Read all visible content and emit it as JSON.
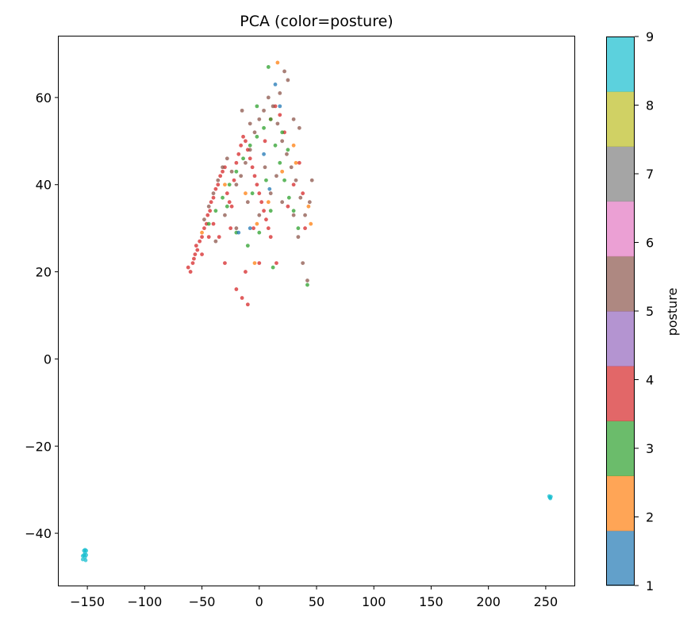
{
  "chart_data": {
    "type": "scatter",
    "title": "PCA (color=posture)",
    "xlabel": "",
    "ylabel": "",
    "xlim": [
      -175,
      275
    ],
    "ylim": [
      -52,
      74
    ],
    "xticks": [
      -150,
      -100,
      -50,
      0,
      50,
      100,
      150,
      200,
      250
    ],
    "yticks": [
      -40,
      -20,
      0,
      20,
      40,
      60
    ],
    "grid": false,
    "colorbar": {
      "label": "posture",
      "min": 1,
      "max": 9,
      "ticks": [
        1,
        2,
        3,
        4,
        5,
        6,
        7,
        8,
        9
      ],
      "colors": [
        "#1f77b4",
        "#ff7f0e",
        "#2ca02c",
        "#d62728",
        "#9467bd",
        "#8c564b",
        "#e377c2",
        "#7f7f7f",
        "#bcbd22",
        "#17becf"
      ]
    },
    "series": [
      {
        "posture": 4,
        "points": [
          [
            -62,
            21
          ],
          [
            -60,
            20
          ],
          [
            -58,
            22
          ],
          [
            -56,
            24
          ],
          [
            -55,
            26
          ],
          [
            -54,
            25
          ],
          [
            -52,
            27
          ],
          [
            -50,
            28
          ],
          [
            -48,
            30
          ],
          [
            -46,
            31
          ],
          [
            -45,
            33
          ],
          [
            -43,
            34
          ],
          [
            -42,
            36
          ],
          [
            -40,
            37
          ],
          [
            -38,
            39
          ],
          [
            -36,
            40
          ],
          [
            -34,
            42
          ],
          [
            -32,
            43
          ],
          [
            -30,
            44
          ],
          [
            -28,
            38
          ],
          [
            -26,
            36
          ],
          [
            -24,
            35
          ],
          [
            -22,
            41
          ],
          [
            -20,
            45
          ],
          [
            -18,
            47
          ],
          [
            -16,
            49
          ],
          [
            -14,
            51
          ],
          [
            -12,
            50
          ],
          [
            -10,
            48
          ],
          [
            -8,
            46
          ],
          [
            -6,
            44
          ],
          [
            -4,
            42
          ],
          [
            -2,
            40
          ],
          [
            0,
            38
          ],
          [
            2,
            36
          ],
          [
            4,
            34
          ],
          [
            6,
            32
          ],
          [
            8,
            30
          ],
          [
            10,
            28
          ],
          [
            -20,
            16
          ],
          [
            -15,
            14
          ],
          [
            -10,
            12.5
          ],
          [
            -30,
            22
          ],
          [
            -35,
            28
          ],
          [
            -40,
            31
          ],
          [
            -44,
            28
          ],
          [
            -50,
            24
          ],
          [
            -57,
            23
          ],
          [
            -25,
            30
          ],
          [
            -5,
            30
          ],
          [
            5,
            50
          ],
          [
            10,
            55
          ],
          [
            14,
            58
          ],
          [
            18,
            56
          ],
          [
            22,
            52
          ],
          [
            30,
            40
          ],
          [
            35,
            45
          ],
          [
            38,
            38
          ],
          [
            40,
            30
          ],
          [
            25,
            35
          ],
          [
            -12,
            20
          ],
          [
            0,
            22
          ],
          [
            15,
            22
          ]
        ]
      },
      {
        "posture": 5,
        "points": [
          [
            -48,
            32
          ],
          [
            -44,
            35
          ],
          [
            -40,
            38
          ],
          [
            -36,
            41
          ],
          [
            -32,
            44
          ],
          [
            -28,
            46
          ],
          [
            -24,
            43
          ],
          [
            -20,
            40
          ],
          [
            -16,
            42
          ],
          [
            -12,
            45
          ],
          [
            -8,
            48
          ],
          [
            -4,
            52
          ],
          [
            0,
            55
          ],
          [
            4,
            57
          ],
          [
            8,
            60
          ],
          [
            12,
            58
          ],
          [
            16,
            54
          ],
          [
            20,
            50
          ],
          [
            24,
            47
          ],
          [
            28,
            44
          ],
          [
            32,
            41
          ],
          [
            36,
            37
          ],
          [
            40,
            33
          ],
          [
            44,
            36
          ],
          [
            46,
            41
          ],
          [
            42,
            18
          ],
          [
            38,
            22
          ],
          [
            34,
            28
          ],
          [
            30,
            33
          ],
          [
            20,
            36
          ],
          [
            10,
            38
          ],
          [
            0,
            33
          ],
          [
            -10,
            36
          ],
          [
            -20,
            30
          ],
          [
            -30,
            33
          ],
          [
            -38,
            27
          ],
          [
            22,
            66
          ],
          [
            25,
            64
          ],
          [
            18,
            61
          ],
          [
            30,
            55
          ],
          [
            35,
            53
          ],
          [
            -15,
            57
          ],
          [
            -8,
            54
          ],
          [
            5,
            44
          ],
          [
            15,
            42
          ]
        ]
      },
      {
        "posture": 3,
        "points": [
          [
            -44,
            31
          ],
          [
            -38,
            34
          ],
          [
            -32,
            37
          ],
          [
            -26,
            40
          ],
          [
            -20,
            43
          ],
          [
            -14,
            46
          ],
          [
            -8,
            49
          ],
          [
            -2,
            51
          ],
          [
            4,
            53
          ],
          [
            10,
            55
          ],
          [
            8,
            67
          ],
          [
            14,
            49
          ],
          [
            18,
            45
          ],
          [
            22,
            41
          ],
          [
            26,
            37
          ],
          [
            30,
            34
          ],
          [
            34,
            30
          ],
          [
            42,
            17
          ],
          [
            10,
            34
          ],
          [
            0,
            29
          ],
          [
            -10,
            26
          ],
          [
            -20,
            29
          ],
          [
            -28,
            35
          ],
          [
            -6,
            38
          ],
          [
            6,
            41
          ],
          [
            12,
            21
          ],
          [
            -2,
            58
          ],
          [
            20,
            52
          ],
          [
            25,
            48
          ]
        ]
      },
      {
        "posture": 2,
        "points": [
          [
            16,
            68
          ],
          [
            -4,
            22
          ],
          [
            -30,
            40
          ],
          [
            -12,
            38
          ],
          [
            8,
            36
          ],
          [
            32,
            45
          ],
          [
            43,
            35
          ],
          [
            45,
            31
          ],
          [
            -50,
            29
          ],
          [
            -2,
            31
          ],
          [
            30,
            49
          ],
          [
            20,
            43
          ]
        ]
      },
      {
        "posture": 1,
        "points": [
          [
            14,
            63
          ],
          [
            18,
            58
          ],
          [
            -8,
            30
          ],
          [
            -18,
            29
          ],
          [
            4,
            47
          ],
          [
            9,
            39
          ]
        ]
      },
      {
        "posture": 9,
        "points": [
          [
            -151,
            -44
          ],
          [
            -152,
            -44.5
          ],
          [
            -153,
            -45
          ],
          [
            -152,
            -45.5
          ],
          [
            -154,
            -46
          ],
          [
            -151,
            -45
          ],
          [
            -153,
            -44
          ],
          [
            -152,
            -43.8
          ],
          [
            -154,
            -45.2
          ],
          [
            -151.5,
            -46.2
          ],
          [
            253,
            -31.5
          ],
          [
            254,
            -32
          ],
          [
            253.5,
            -31.8
          ],
          [
            254.5,
            -31.6
          ]
        ]
      }
    ]
  }
}
